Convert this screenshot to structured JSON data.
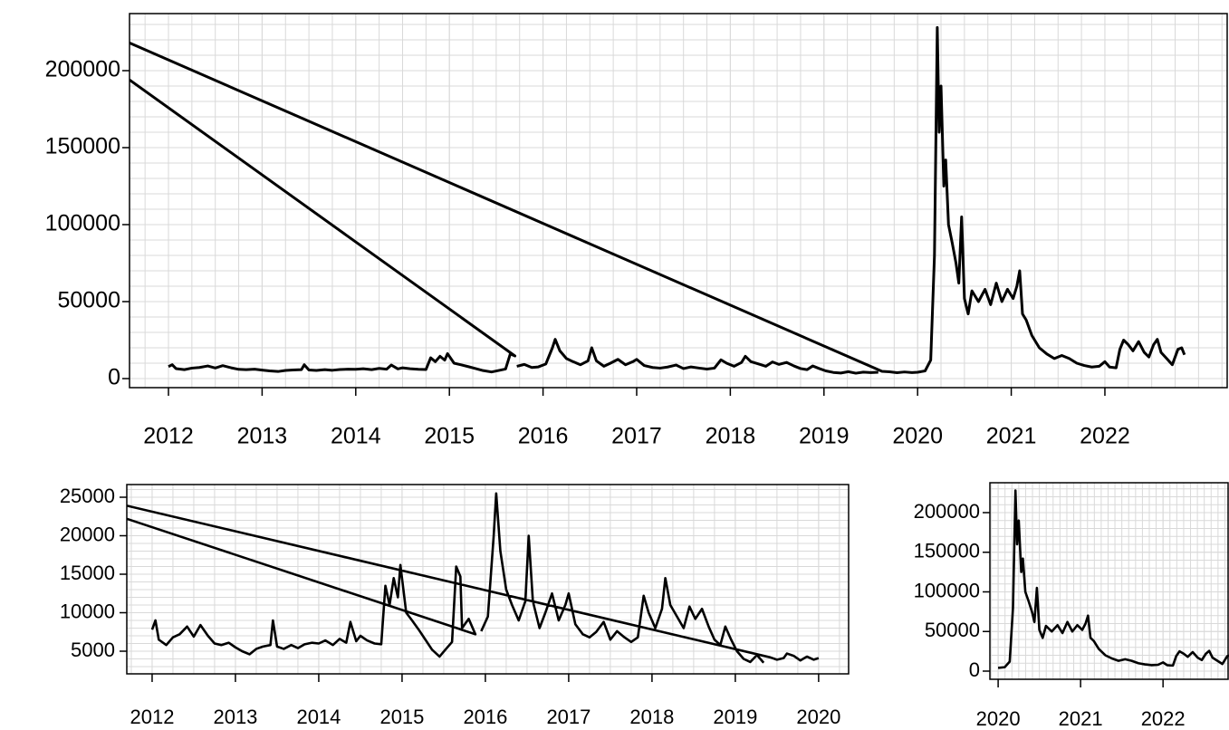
{
  "chart_data": [
    {
      "type": "line",
      "color": "#000000",
      "grid": true,
      "xlim": [
        2011.584,
        2023.306
      ],
      "ylim": [
        -5882,
        237059
      ],
      "xticks": [
        2012,
        2013,
        2014,
        2015,
        2016,
        2017,
        2018,
        2019,
        2020,
        2021,
        2022
      ],
      "yticks": [
        0,
        50000,
        100000,
        150000,
        200000
      ],
      "x": [
        2012.0,
        2012.04,
        2012.08,
        2012.17,
        2012.25,
        2012.33,
        2012.42,
        2012.5,
        2012.58,
        2012.67,
        2012.75,
        2012.83,
        2012.92,
        2013.0,
        2013.08,
        2013.17,
        2013.25,
        2013.33,
        2013.42,
        2013.45,
        2013.5,
        2013.58,
        2013.67,
        2013.75,
        2013.83,
        2013.92,
        2014.0,
        2014.08,
        2014.17,
        2014.25,
        2014.33,
        2014.38,
        2014.45,
        2014.5,
        2014.58,
        2014.67,
        2014.75,
        2014.8,
        2014.85,
        2014.9,
        2014.95,
        2014.98,
        2015.05,
        2015.12,
        2015.2,
        2015.28,
        2015.36,
        2015.45,
        2015.52,
        2015.6,
        2015.65,
        2015.7,
        2011.584,
        null,
        2015.72,
        2015.8,
        2015.88,
        2015.95,
        2016.03,
        2016.1,
        2016.13,
        2016.18,
        2016.25,
        2016.32,
        2016.4,
        2016.48,
        2016.52,
        2016.57,
        2016.65,
        2016.72,
        2016.8,
        2016.88,
        2016.96,
        2017.0,
        2017.08,
        2017.17,
        2017.25,
        2017.33,
        2017.42,
        2017.5,
        2017.58,
        2017.67,
        2017.75,
        2017.83,
        2017.9,
        2017.96,
        2018.04,
        2018.12,
        2018.16,
        2018.22,
        2018.3,
        2018.38,
        2018.45,
        2018.52,
        2018.6,
        2018.68,
        2018.75,
        2018.82,
        2018.88,
        2018.95,
        2019.02,
        2019.1,
        2019.18,
        2019.26,
        2019.34,
        2019.42,
        2019.5,
        2019.58,
        null,
        2011.584,
        2019.62,
        2019.7,
        2019.78,
        2019.86,
        2019.94,
        2020.0,
        2020.08,
        2020.14,
        2020.18,
        2020.21,
        2020.23,
        2020.25,
        2020.28,
        2020.3,
        2020.33,
        2020.37,
        2020.41,
        2020.44,
        2020.47,
        2020.5,
        2020.54,
        2020.58,
        2020.65,
        2020.72,
        2020.78,
        2020.84,
        2020.9,
        2020.96,
        2021.02,
        2021.06,
        2021.09,
        2021.12,
        2021.16,
        2021.22,
        2021.3,
        2021.38,
        2021.46,
        2021.54,
        2021.62,
        2021.7,
        2021.78,
        2021.86,
        2021.94,
        2022.0,
        2022.05,
        2022.12,
        2022.16,
        2022.2,
        2022.25,
        2022.3,
        2022.36,
        2022.42,
        2022.47,
        2022.52,
        2022.56,
        2022.6,
        2022.66,
        2022.72,
        2022.78,
        2022.82,
        2022.85
      ],
      "values": [
        7800,
        9000,
        6500,
        5800,
        6800,
        7200,
        8200,
        6900,
        8400,
        7000,
        6000,
        5800,
        6100,
        5500,
        5000,
        4600,
        5300,
        5600,
        5800,
        9000,
        5600,
        5300,
        5800,
        5400,
        5900,
        6100,
        6000,
        6400,
        5800,
        6600,
        6100,
        8800,
        6300,
        7000,
        6400,
        6000,
        5900,
        13500,
        11000,
        14500,
        12000,
        16200,
        10000,
        9000,
        7800,
        6500,
        5200,
        4300,
        5200,
        6200,
        16000,
        14700,
        194000,
        null,
        8000,
        9200,
        7200,
        7600,
        9500,
        20000,
        25500,
        18000,
        13000,
        11000,
        9000,
        11500,
        20000,
        11500,
        8000,
        10000,
        12500,
        9000,
        11000,
        12500,
        8500,
        7200,
        6800,
        7500,
        8800,
        6500,
        7600,
        6800,
        6200,
        6800,
        12200,
        10000,
        8000,
        10500,
        14500,
        11000,
        9500,
        8000,
        10800,
        9200,
        10500,
        8200,
        6500,
        5800,
        8200,
        6500,
        5000,
        4000,
        3600,
        4500,
        3500,
        4200,
        3900,
        4100,
        null,
        218000,
        4700,
        4400,
        3800,
        4300,
        3900,
        4100,
        5000,
        12000,
        80000,
        228000,
        160000,
        190000,
        125000,
        142000,
        100000,
        88000,
        75000,
        62000,
        105000,
        52000,
        42000,
        57000,
        50000,
        58000,
        48000,
        62000,
        50000,
        58000,
        52000,
        60000,
        70000,
        42000,
        38000,
        28000,
        20000,
        16000,
        13000,
        15000,
        13000,
        10000,
        8500,
        7500,
        8000,
        11000,
        7500,
        7000,
        19000,
        25000,
        22000,
        18000,
        24000,
        17000,
        14000,
        22000,
        25500,
        17000,
        13000,
        9000,
        19000,
        20000,
        15500
      ]
    },
    {
      "type": "line",
      "color": "#000000",
      "grid": true,
      "xlim": [
        2011.696,
        2020.36
      ],
      "ylim": [
        2059,
        26647
      ],
      "xticks": [
        2012,
        2013,
        2014,
        2015,
        2016,
        2017,
        2018,
        2019,
        2020
      ],
      "yticks": [
        5000,
        10000,
        15000,
        20000,
        25000
      ],
      "x": [
        2012.0,
        2012.04,
        2012.08,
        2012.17,
        2012.25,
        2012.33,
        2012.42,
        2012.5,
        2012.58,
        2012.67,
        2012.75,
        2012.83,
        2012.92,
        2013.0,
        2013.08,
        2013.17,
        2013.25,
        2013.33,
        2013.42,
        2013.45,
        2013.5,
        2013.58,
        2013.67,
        2013.75,
        2013.83,
        2013.92,
        2014.0,
        2014.08,
        2014.17,
        2014.25,
        2014.33,
        2014.38,
        2014.45,
        2014.5,
        2014.58,
        2014.67,
        2014.75,
        2014.8,
        2014.85,
        2014.9,
        2014.95,
        2014.98,
        2015.05,
        2015.12,
        2015.2,
        2015.28,
        2015.36,
        2015.45,
        2015.52,
        2015.6,
        2015.65,
        2015.7,
        2015.72,
        2015.8,
        2015.88,
        2011.696,
        null,
        2015.95,
        2016.03,
        2016.1,
        2016.13,
        2016.18,
        2016.25,
        2016.32,
        2016.4,
        2016.48,
        2016.52,
        2016.57,
        2016.65,
        2016.72,
        2016.8,
        2016.88,
        2016.96,
        2017.0,
        2017.08,
        2017.17,
        2017.25,
        2017.33,
        2017.42,
        2017.5,
        2017.58,
        2017.67,
        2017.75,
        2017.83,
        2017.9,
        2017.96,
        2018.04,
        2018.12,
        2018.16,
        2018.22,
        2018.3,
        2018.38,
        2018.45,
        2018.52,
        2018.6,
        2018.68,
        2018.75,
        2018.82,
        2018.88,
        2018.95,
        2019.02,
        2019.1,
        2019.18,
        2019.26,
        2019.34,
        null,
        2011.696,
        2019.42,
        2019.5,
        2019.58,
        2019.62,
        2019.7,
        2019.78,
        2019.86,
        2019.94,
        2020.0
      ],
      "values": [
        7800,
        9000,
        6500,
        5800,
        6800,
        7200,
        8200,
        6900,
        8400,
        7000,
        6000,
        5800,
        6100,
        5500,
        5000,
        4600,
        5300,
        5600,
        5800,
        9000,
        5600,
        5300,
        5800,
        5400,
        5900,
        6100,
        6000,
        6400,
        5800,
        6600,
        6100,
        8800,
        6300,
        7000,
        6400,
        6000,
        5900,
        13500,
        11000,
        14500,
        12000,
        16200,
        10000,
        9000,
        7800,
        6500,
        5200,
        4300,
        5200,
        6200,
        16000,
        14700,
        8000,
        9200,
        7200,
        22200,
        null,
        7600,
        9500,
        20000,
        25500,
        18000,
        13000,
        11000,
        9000,
        11500,
        20000,
        11500,
        8000,
        10000,
        12500,
        9000,
        11000,
        12500,
        8500,
        7200,
        6800,
        7500,
        8800,
        6500,
        7600,
        6800,
        6200,
        6800,
        12200,
        10000,
        8000,
        10500,
        14500,
        11000,
        9500,
        8000,
        10800,
        9200,
        10500,
        8200,
        6500,
        5800,
        8200,
        6500,
        5000,
        4000,
        3600,
        4500,
        3500,
        null,
        23900,
        4200,
        3900,
        4100,
        4700,
        4400,
        3800,
        4300,
        3900,
        4100
      ]
    },
    {
      "type": "line",
      "color": "#000000",
      "grid": true,
      "xlim": [
        2019.9,
        2022.8
      ],
      "ylim": [
        -10300,
        237700
      ],
      "xticks": [
        2020,
        2021,
        2022
      ],
      "yticks": [
        0,
        50000,
        100000,
        150000,
        200000
      ],
      "x": [
        2020.0,
        2020.08,
        2020.14,
        2020.18,
        2020.21,
        2020.23,
        2020.25,
        2020.28,
        2020.3,
        2020.33,
        2020.37,
        2020.41,
        2020.44,
        2020.47,
        2020.5,
        2020.54,
        2020.58,
        2020.65,
        2020.72,
        2020.78,
        2020.84,
        2020.9,
        2020.96,
        2021.02,
        2021.06,
        2021.09,
        2021.12,
        2021.16,
        2021.22,
        2021.3,
        2021.38,
        2021.46,
        2021.54,
        2021.62,
        2021.7,
        2021.78,
        2021.86,
        2021.94,
        2022.0,
        2022.05,
        2022.12,
        2022.16,
        2022.2,
        2022.25,
        2022.3,
        2022.36,
        2022.42,
        2022.47,
        2022.52,
        2022.56,
        2022.6,
        2022.66,
        2022.72,
        2022.78,
        2022.82,
        2022.85
      ],
      "values": [
        4100,
        5000,
        12000,
        80000,
        228000,
        160000,
        190000,
        125000,
        142000,
        100000,
        88000,
        75000,
        62000,
        105000,
        52000,
        42000,
        57000,
        50000,
        58000,
        48000,
        62000,
        50000,
        58000,
        52000,
        60000,
        70000,
        42000,
        38000,
        28000,
        20000,
        16000,
        13000,
        15000,
        13000,
        10000,
        8500,
        7500,
        8000,
        11000,
        7500,
        7000,
        19000,
        25000,
        22000,
        18000,
        24000,
        17000,
        14000,
        22000,
        25500,
        17000,
        13000,
        9000,
        19000,
        20000,
        15500
      ]
    }
  ]
}
